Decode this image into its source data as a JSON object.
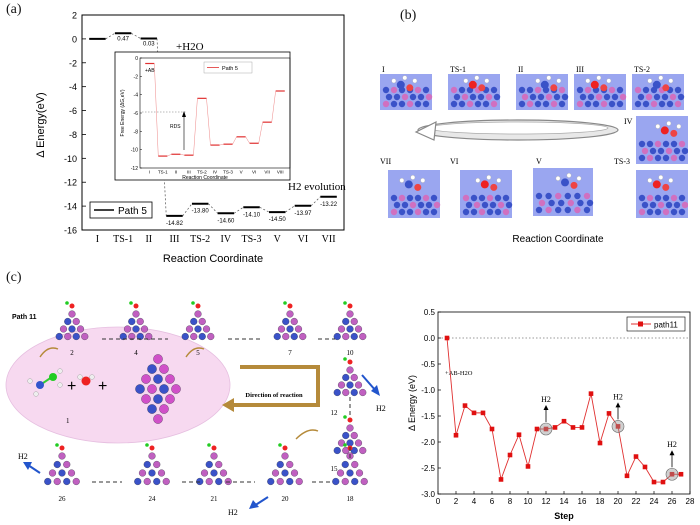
{
  "panels": {
    "a": {
      "label": "(a)",
      "chart_data": {
        "type": "line",
        "title": "",
        "ylabel": "Δ Energy(eV)",
        "xlabel": "Reaction Coordinate",
        "ylim": [
          -16,
          2
        ],
        "yticks": [
          "2",
          "0",
          "-2",
          "-4",
          "-6",
          "-8",
          "-10",
          "-12",
          "-14",
          "-16"
        ],
        "categories": [
          "I",
          "TS-1",
          "II",
          "III",
          "TS-2",
          "IV",
          "TS-3",
          "V",
          "VI",
          "VII"
        ],
        "series": [
          {
            "name": "Path 5",
            "values": [
              0,
              0.47,
              0.03,
              -14.82,
              -13.8,
              -14.6,
              -14.1,
              -14.5,
              -13.97,
              -13.22
            ]
          }
        ],
        "data_labels": [
          "0.47",
          "0.03",
          "-14.82",
          "-13.80",
          "-14.60",
          "-14.10",
          "-14.50",
          "-13.97",
          "-13.22"
        ],
        "legend": "Path 5",
        "annotations": {
          "h2o": "+H2O",
          "h2": "H2 evolution"
        }
      },
      "inset": {
        "chart_data": {
          "type": "line",
          "ylabel": "Free Energy (ΔG,eV)",
          "xlabel": "Reaction Coordinate",
          "ylim": [
            -12,
            0
          ],
          "yticks": [
            "0",
            "-2",
            "-4",
            "-6",
            "-8",
            "-10",
            "-12"
          ],
          "categories": [
            "I",
            "TS-1",
            "II",
            "III",
            "TS-2",
            "IV",
            "TS-3",
            "V",
            "VI",
            "VII",
            "VIII"
          ],
          "series": [
            {
              "name": "Path 5",
              "values": [
                -0.6,
                -10.7,
                -10.5,
                -10.6,
                -4.4,
                -9.5,
                -9.4,
                -8.6,
                -9.3,
                -7.0,
                -3.6
              ]
            }
          ],
          "legend": "Path 5",
          "annotations": {
            "ab": "+AB",
            "rds": "RDS"
          }
        }
      }
    },
    "b": {
      "label": "(b)",
      "top_labels": [
        "I",
        "TS-1",
        "II",
        "III",
        "TS-2"
      ],
      "right_label": "IV",
      "bottom_labels": [
        "VII",
        "VI",
        "V",
        "TS-3"
      ],
      "footer": "Reaction Coordinate"
    },
    "c": {
      "label": "(c)",
      "path_label": "Path 11",
      "top_nums": [
        "2",
        "4",
        "5",
        "7",
        "10"
      ],
      "right_nums": [
        "12",
        "15"
      ],
      "bottom_nums": [
        "26",
        "24",
        "21",
        "20",
        "18"
      ],
      "center_num": "1",
      "direction": "Direction of reaction",
      "h2": "H2",
      "chart_data": {
        "type": "line",
        "ylabel": "Δ Energy (eV)",
        "xlabel": "Step",
        "xlim": [
          0,
          28
        ],
        "ylim": [
          -3.0,
          0.5
        ],
        "xticks": [
          "0",
          "2",
          "4",
          "6",
          "8",
          "10",
          "12",
          "14",
          "16",
          "18",
          "20",
          "22",
          "24",
          "26",
          "28"
        ],
        "yticks": [
          "0.5",
          "0.0",
          "-0.5",
          "-1.0",
          "-1.5",
          "-2.0",
          "-2.5",
          "-3.0"
        ],
        "x": [
          1,
          2,
          3,
          4,
          5,
          6,
          7,
          8,
          9,
          10,
          11,
          12,
          13,
          14,
          15,
          16,
          17,
          18,
          19,
          20,
          21,
          22,
          23,
          24,
          25,
          26,
          27
        ],
        "series": [
          {
            "name": "path11",
            "values": [
              0.0,
              -1.87,
              -1.3,
              -1.44,
              -1.44,
              -1.75,
              -2.72,
              -2.25,
              -1.86,
              -2.47,
              -1.75,
              -1.75,
              -1.72,
              -1.6,
              -1.72,
              -1.72,
              -1.07,
              -2.02,
              -1.45,
              -1.7,
              -2.65,
              -2.28,
              -2.48,
              -2.77,
              -2.77,
              -2.62,
              -2.62
            ]
          }
        ],
        "legend": "path11",
        "annotations": {
          "ab": "+AB-H2O",
          "h2": "H2"
        }
      }
    }
  }
}
